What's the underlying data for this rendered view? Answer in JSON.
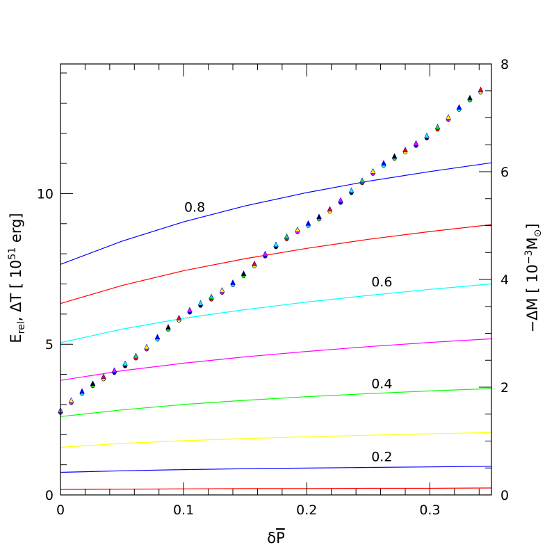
{
  "chart_data": {
    "type": "line",
    "x_label": {
      "main": "δ",
      "bar": "P"
    },
    "y_left_label": {
      "e": "E",
      "rel": "rel",
      "rest": ", ΔT  [  10",
      "exp": "51",
      "unit": " erg]"
    },
    "y_right_label": {
      "pre": "−ΔM  [  10",
      "exp": "−3",
      "m": "M",
      "sun": "⊙",
      "post": "]"
    },
    "x_range": [
      0,
      0.35
    ],
    "y_left_range": [
      0,
      14.3
    ],
    "y_right_range": [
      0,
      8
    ],
    "x_ticks": [
      {
        "value": 0,
        "label": "0"
      },
      {
        "value": 0.1,
        "label": "0.1"
      },
      {
        "value": 0.2,
        "label": "0.2"
      },
      {
        "value": 0.3,
        "label": "0.3"
      }
    ],
    "y_left_ticks": [
      {
        "value": 0,
        "label": "0"
      },
      {
        "value": 5,
        "label": "5"
      },
      {
        "value": 10,
        "label": "10"
      }
    ],
    "y_right_ticks": [
      {
        "value": 0,
        "label": "0"
      },
      {
        "value": 2,
        "label": "2"
      },
      {
        "value": 4,
        "label": "4"
      },
      {
        "value": 6,
        "label": "6"
      },
      {
        "value": 8,
        "label": "8"
      }
    ],
    "energy_curves": [
      {
        "color": "#0000ff",
        "x": [
          0,
          0.05,
          0.1,
          0.15,
          0.2,
          0.25,
          0.3,
          0.35
        ],
        "y": [
          7.65,
          8.42,
          9.06,
          9.59,
          10.03,
          10.41,
          10.73,
          11.02
        ]
      },
      {
        "color": "#ff0000",
        "x": [
          0,
          0.05,
          0.1,
          0.15,
          0.2,
          0.25,
          0.3,
          0.35
        ],
        "y": [
          6.35,
          6.95,
          7.44,
          7.84,
          8.18,
          8.48,
          8.74,
          8.97
        ]
      },
      {
        "color": "#00ffff",
        "x": [
          0,
          0.05,
          0.1,
          0.15,
          0.2,
          0.25,
          0.3,
          0.35
        ],
        "y": [
          5.05,
          5.5,
          5.86,
          6.15,
          6.4,
          6.62,
          6.82,
          7.0
        ]
      },
      {
        "color": "#ff00ff",
        "x": [
          0,
          0.05,
          0.1,
          0.15,
          0.2,
          0.25,
          0.3,
          0.35
        ],
        "y": [
          3.8,
          4.12,
          4.37,
          4.58,
          4.76,
          4.92,
          5.06,
          5.18
        ]
      },
      {
        "color": "#00ff00",
        "x": [
          0,
          0.05,
          0.1,
          0.15,
          0.2,
          0.25,
          0.3,
          0.35
        ],
        "y": [
          2.6,
          2.82,
          3.0,
          3.14,
          3.26,
          3.36,
          3.45,
          3.53
        ]
      },
      {
        "color": "#ffff00",
        "x": [
          0,
          0.05,
          0.1,
          0.15,
          0.2,
          0.25,
          0.3,
          0.35
        ],
        "y": [
          1.58,
          1.71,
          1.8,
          1.87,
          1.93,
          1.98,
          2.03,
          2.07
        ]
      },
      {
        "color": "#0000ff",
        "x": [
          0,
          0.05,
          0.1,
          0.15,
          0.2,
          0.25,
          0.3,
          0.35
        ],
        "y": [
          0.75,
          0.8,
          0.84,
          0.87,
          0.89,
          0.91,
          0.93,
          0.95
        ]
      },
      {
        "color": "#ff0000",
        "x": [
          0,
          0.05,
          0.1,
          0.15,
          0.2,
          0.25,
          0.3,
          0.35
        ],
        "y": [
          0.18,
          0.19,
          0.2,
          0.21,
          0.21,
          0.22,
          0.22,
          0.23
        ]
      }
    ],
    "curve_labels": [
      {
        "text": "0.8",
        "x": 0.109,
        "y": 9.4
      },
      {
        "text": "0.6",
        "x": 0.261,
        "y": 6.92
      },
      {
        "text": "0.4",
        "x": 0.261,
        "y": 3.54
      },
      {
        "text": "0.2",
        "x": 0.261,
        "y": 1.12
      }
    ],
    "mass_loss_markers": {
      "x_step": 0.00875,
      "start_y": 1.55,
      "slope": 17.3,
      "wiggle_period": 0.0793,
      "wiggle_amplitude": 0.05,
      "colors": [
        "#ff0000",
        "#ff00ff",
        "#00ffff",
        "#00ff00",
        "#ffff00",
        "#0000ff",
        "#000000"
      ]
    }
  }
}
